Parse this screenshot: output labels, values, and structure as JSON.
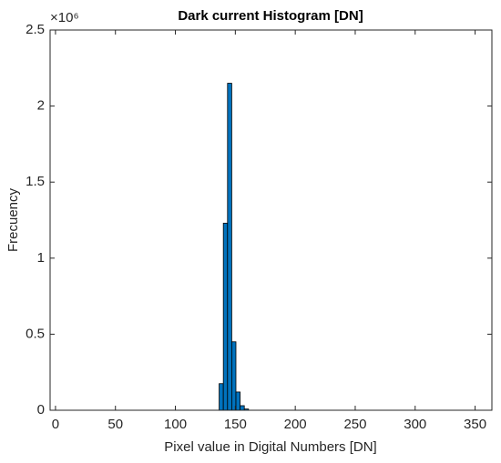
{
  "chart_data": {
    "type": "histogram",
    "title": "Dark current Histogram [DN]",
    "x_label": "Pixel value in Digital Numbers [DN]",
    "y_label": "Frecuency",
    "y_exponent_label": "×10⁶",
    "bins": [
      0,
      3.5,
      7,
      10.5,
      14,
      17.5,
      21,
      24.5,
      28,
      31.5,
      35,
      38.5,
      42,
      45.5,
      49,
      52.5,
      56,
      59.5,
      63,
      66.5,
      70,
      73.5,
      77,
      80.5,
      84,
      87.5,
      91,
      94.5,
      98,
      101.5,
      105,
      108.5,
      112,
      115.5,
      119,
      122.5,
      126,
      129.5,
      133,
      136.5,
      140,
      143.5,
      147,
      150.5,
      154,
      157.5,
      161,
      164.5,
      168,
      171.5,
      175,
      178.5,
      182,
      185.5,
      189,
      192.5,
      196,
      199.5,
      203,
      206.5,
      210,
      213.5,
      217,
      220.5,
      224,
      227.5,
      231,
      234.5,
      238,
      241.5,
      245,
      248.5,
      252,
      255.5,
      259,
      262.5,
      266,
      269.5,
      273,
      276.5,
      280,
      283.5,
      287,
      290.5,
      294,
      297.5,
      301,
      304.5,
      308,
      311.5,
      315,
      318.5,
      322,
      325.5,
      329,
      332.5,
      336,
      339.5,
      343,
      346.5,
      350
    ],
    "values": [
      0,
      0,
      0,
      0,
      0,
      0,
      0,
      0,
      0,
      0,
      0,
      0,
      0,
      0,
      0,
      0,
      0,
      0,
      0,
      0,
      0,
      0,
      0,
      0,
      0,
      0,
      0,
      0,
      0,
      0,
      0,
      0,
      0,
      0,
      0,
      0,
      0,
      0,
      0,
      175000,
      1230000,
      2150000,
      450000,
      120000,
      30000,
      8000,
      0,
      0,
      0,
      0,
      0,
      0,
      0,
      0,
      0,
      0,
      0,
      0,
      0,
      0,
      0,
      0,
      0,
      0,
      0,
      0,
      0,
      0,
      0,
      0,
      0,
      0,
      0,
      0,
      0,
      0,
      0,
      0,
      0,
      0,
      0,
      0,
      0,
      0,
      0,
      0,
      0,
      0,
      0,
      0,
      0,
      0,
      0,
      0,
      0,
      0,
      0,
      0,
      0,
      0
    ],
    "color": "#0072bd",
    "edge_color": "#000000",
    "xlim": [
      -4.5,
      364
    ],
    "xticks": [
      0,
      50,
      100,
      150,
      200,
      250,
      300,
      350
    ],
    "ylim": [
      0,
      2500000
    ],
    "yticks": [
      0,
      {
        "value": 500000,
        "label": "0.5"
      },
      {
        "value": 1000000,
        "label": "1"
      },
      {
        "value": 1500000,
        "label": "1.5"
      },
      {
        "value": 2000000,
        "label": "2"
      },
      {
        "value": 2500000,
        "label": "2.5"
      }
    ]
  }
}
